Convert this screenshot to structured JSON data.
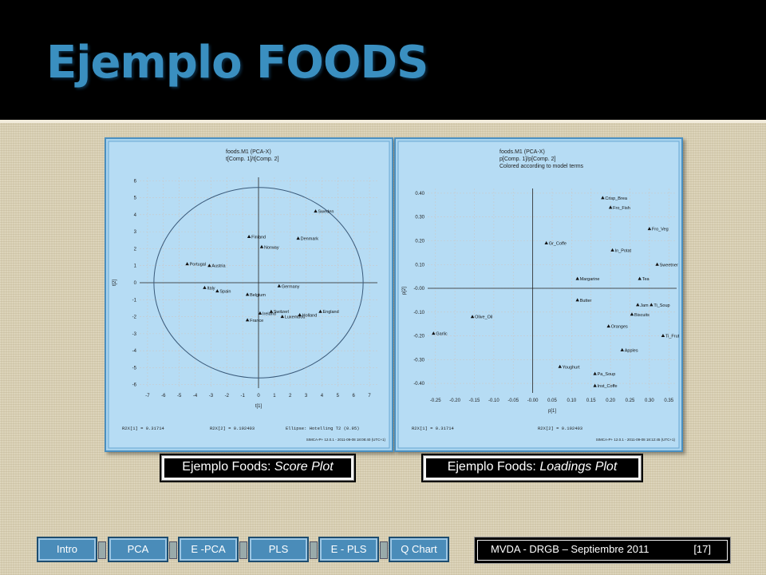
{
  "slide": {
    "title": "Ejemplo FOODS",
    "footer_text": "MVDA  - DRGB – Septiembre 2011",
    "footer_page": "[17]"
  },
  "captions": {
    "score": {
      "prefix": "Ejemplo Foods: ",
      "italic": "Score Plot"
    },
    "loadings": {
      "prefix": "Ejemplo Foods: ",
      "italic": "Loadings Plot"
    }
  },
  "nav": [
    {
      "label": "Intro"
    },
    {
      "label": "PCA"
    },
    {
      "label": "E -PCA"
    },
    {
      "label": "PLS"
    },
    {
      "label": "E - PLS"
    },
    {
      "label": "Q Chart"
    }
  ],
  "colors": {
    "title": "#3a8fc0",
    "panel": "#a8d3ee",
    "plot_bg": "#ffffff",
    "nav": "#4a8cb9",
    "ellipse": "#3a5a7a"
  },
  "chart_data": [
    {
      "type": "scatter",
      "header_lines": [
        "foods.M1 (PCA-X)",
        "t[Comp. 1]/t[Comp. 2]"
      ],
      "xlabel": "t[1]",
      "ylabel": "t[2]",
      "xlim": [
        -7.5,
        7.5
      ],
      "ylim": [
        -6.2,
        6.2
      ],
      "xticks": [
        -7,
        -6,
        -5,
        -4,
        -3,
        -2,
        -1,
        0,
        1,
        2,
        3,
        4,
        5,
        6,
        7
      ],
      "yticks": [
        -6,
        -5,
        -4,
        -3,
        -2,
        -1,
        0,
        1,
        2,
        3,
        4,
        5,
        6
      ],
      "grid": true,
      "ellipse": {
        "rx": 6.6,
        "ry": 5.6
      },
      "footer_left": "R2X[1] = 0.31714",
      "footer_mid": "R2X[2] = 0.192403",
      "footer_right": "Ellipse: Hotelling T2 (0.95)",
      "stamp": "SIMCA-P+ 12.0.1 - 2011-09-08 18:08:40 (UTC+1)",
      "points": [
        {
          "label": "Sweden",
          "x": 3.6,
          "y": 4.2
        },
        {
          "label": "Finland",
          "x": -0.6,
          "y": 2.7
        },
        {
          "label": "Denmark",
          "x": 2.5,
          "y": 2.6
        },
        {
          "label": "Norway",
          "x": 0.2,
          "y": 2.1
        },
        {
          "label": "Portugal",
          "x": -4.5,
          "y": 1.1
        },
        {
          "label": "Austria",
          "x": -3.1,
          "y": 1.0
        },
        {
          "label": "Italy",
          "x": -3.4,
          "y": -0.3
        },
        {
          "label": "Spain",
          "x": -2.6,
          "y": -0.5
        },
        {
          "label": "Belgium",
          "x": -0.7,
          "y": -0.7
        },
        {
          "label": "Germany",
          "x": 1.3,
          "y": -0.2
        },
        {
          "label": "England",
          "x": 3.9,
          "y": -1.7
        },
        {
          "label": "Holland",
          "x": 2.6,
          "y": -1.9
        },
        {
          "label": "Switzerl",
          "x": 0.8,
          "y": -1.7
        },
        {
          "label": "Ireland",
          "x": 0.1,
          "y": -1.8
        },
        {
          "label": "Luxembou",
          "x": 1.5,
          "y": -2.0
        },
        {
          "label": "France",
          "x": -0.7,
          "y": -2.2
        }
      ]
    },
    {
      "type": "scatter",
      "header_lines": [
        "foods.M1 (PCA-X)",
        "p[Comp. 1]/p[Comp. 2]",
        "Colored according to model terms"
      ],
      "xlabel": "p[1]",
      "ylabel": "p[2]",
      "xlim": [
        -0.27,
        0.37
      ],
      "ylim": [
        -0.44,
        0.42
      ],
      "xticks": [
        -0.25,
        -0.2,
        -0.15,
        -0.1,
        -0.05,
        0.0,
        0.05,
        0.1,
        0.15,
        0.2,
        0.25,
        0.3,
        0.35
      ],
      "xtick_labels": [
        "-0.25",
        "-0.20",
        "-0.15",
        "-0.10",
        "-0.05",
        "-0.00",
        "0.05",
        "0.10",
        "0.15",
        "0.20",
        "0.25",
        "0.30",
        "0.35"
      ],
      "yticks": [
        -0.4,
        -0.3,
        -0.2,
        -0.1,
        0.0,
        0.1,
        0.2,
        0.3,
        0.4
      ],
      "ytick_labels": [
        "-0.40",
        "-0.30",
        "-0.20",
        "-0.10",
        "-0.00",
        "0.10",
        "0.20",
        "0.30",
        "0.40"
      ],
      "grid": true,
      "footer_left": "R2X[1] = 0.31714",
      "footer_mid": "R2X[2] = 0.192403",
      "stamp": "SIMCA-P+ 12.0.1 - 2011-09-08 18:12:45 (UTC+1)",
      "points": [
        {
          "label": "Crisp_Brea",
          "x": 0.18,
          "y": 0.38
        },
        {
          "label": "Fro_Fish",
          "x": 0.2,
          "y": 0.34
        },
        {
          "label": "Fro_Veg",
          "x": 0.3,
          "y": 0.25
        },
        {
          "label": "Gr_Coffe",
          "x": 0.035,
          "y": 0.19
        },
        {
          "label": "In_Potat",
          "x": 0.205,
          "y": 0.16
        },
        {
          "label": "Sweetner",
          "x": 0.32,
          "y": 0.1
        },
        {
          "label": "Margarine",
          "x": 0.115,
          "y": 0.04
        },
        {
          "label": "Tea",
          "x": 0.275,
          "y": 0.04
        },
        {
          "label": "Butter",
          "x": 0.115,
          "y": -0.05
        },
        {
          "label": "Jam",
          "x": 0.27,
          "y": -0.07
        },
        {
          "label": "Ti_Soup",
          "x": 0.305,
          "y": -0.07
        },
        {
          "label": "Biscuits",
          "x": 0.255,
          "y": -0.11
        },
        {
          "label": "Olive_Oil",
          "x": -0.155,
          "y": -0.12
        },
        {
          "label": "Oranges",
          "x": 0.195,
          "y": -0.16
        },
        {
          "label": "Garlic",
          "x": -0.255,
          "y": -0.19
        },
        {
          "label": "Ti_Frut",
          "x": 0.335,
          "y": -0.2
        },
        {
          "label": "Apples",
          "x": 0.23,
          "y": -0.26
        },
        {
          "label": "Youghurt",
          "x": 0.07,
          "y": -0.33
        },
        {
          "label": "Pa_Soup",
          "x": 0.16,
          "y": -0.36
        },
        {
          "label": "Inst_Coffe",
          "x": 0.16,
          "y": -0.41
        }
      ]
    }
  ]
}
